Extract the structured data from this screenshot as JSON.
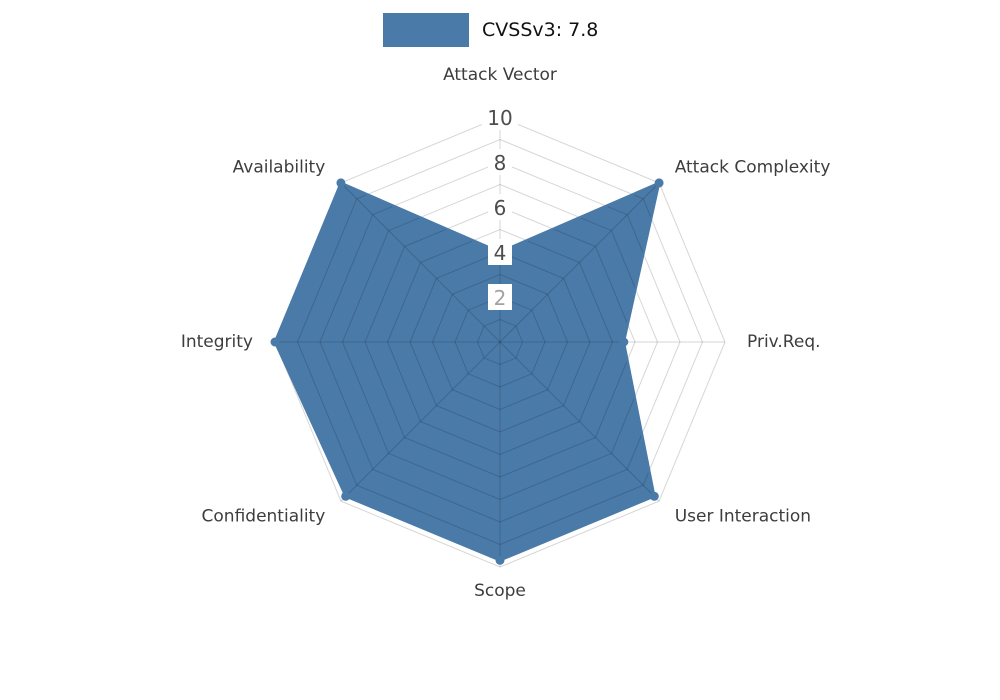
{
  "legend": {
    "label": "CVSSv3: 7.8",
    "swatch_color": "#4a7aa8"
  },
  "chart_data": {
    "type": "radar",
    "title": "CVSSv3: 7.8",
    "categories": [
      "Attack Vector",
      "Attack Complexity",
      "Priv.Req.",
      "User Interaction",
      "Scope",
      "Confidentiality",
      "Integrity",
      "Availability"
    ],
    "series": [
      {
        "name": "CVSSv3: 7.8",
        "values": [
          4,
          10,
          5.5,
          9.7,
          9.7,
          9.7,
          10,
          10
        ],
        "color": "#4a7aa8"
      }
    ],
    "rmin": 0,
    "rmax": 10,
    "ticks": [
      {
        "value": 2,
        "color": "#a2a2a2"
      },
      {
        "value": 4,
        "color": "#4d4d4d"
      },
      {
        "value": 6,
        "color": "#4d4d4d"
      },
      {
        "value": 8,
        "color": "#4d4d4d"
      },
      {
        "value": 10,
        "color": "#4d4d4d"
      }
    ],
    "grid": {
      "rings": 10,
      "color": "#000000",
      "opacity": 0.16,
      "on": true
    },
    "label_color": "#3d3d3d",
    "legend_position": "top-center"
  }
}
